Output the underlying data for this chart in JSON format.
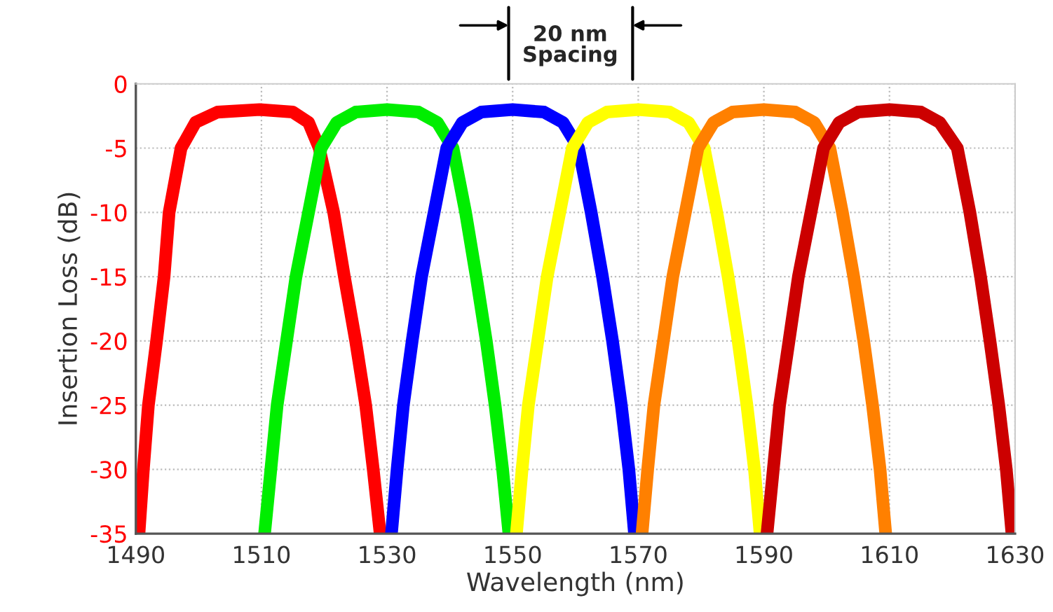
{
  "chart_data": {
    "type": "line",
    "xlabel": "Wavelength (nm)",
    "ylabel": "Insertion Loss (dB)",
    "xlim": [
      1490,
      1630
    ],
    "ylim": [
      -35,
      0
    ],
    "xticks": [
      1490,
      1510,
      1530,
      1550,
      1570,
      1590,
      1610,
      1630
    ],
    "yticks": [
      -35,
      -30,
      -25,
      -20,
      -15,
      -10,
      -5,
      0
    ],
    "grid": true,
    "marker": "none",
    "line_style": "solid",
    "annotations": [
      "20 nm\nSpacing"
    ],
    "series": [
      {
        "color": "#ff0000",
        "x": [
          1490.5,
          1491.2,
          1492,
          1493.3,
          1494.5,
          1495.3,
          1497.2,
          1499.5,
          1503,
          1509.7,
          1515,
          1517.5,
          1519.2,
          1521.5,
          1523.2,
          1525,
          1526.6,
          1527.8,
          1528.9
        ],
        "values": [
          -35,
          -30,
          -25,
          -20,
          -15,
          -10,
          -5,
          -3,
          -2.2,
          -2,
          -2.2,
          -3,
          -5,
          -10,
          -15,
          -20,
          -25,
          -30,
          -35
        ]
      },
      {
        "color": "#00ee00",
        "x": [
          1510.5,
          1511.5,
          1512.5,
          1514,
          1515.5,
          1517.5,
          1519.5,
          1522,
          1525,
          1530,
          1535,
          1538,
          1540.5,
          1542.5,
          1544.2,
          1545.8,
          1547.2,
          1548.4,
          1549.4
        ],
        "values": [
          -35,
          -30,
          -25,
          -20,
          -15,
          -10,
          -5,
          -3,
          -2.2,
          -2,
          -2.2,
          -3,
          -5,
          -10,
          -15,
          -20,
          -25,
          -30,
          -35
        ]
      },
      {
        "color": "#0000ff",
        "x": [
          1530.7,
          1531.6,
          1532.6,
          1534,
          1535.5,
          1537.5,
          1539.5,
          1542,
          1545,
          1550,
          1555,
          1558,
          1560.5,
          1562.5,
          1564.3,
          1565.9,
          1567.3,
          1568.5,
          1569.4
        ],
        "values": [
          -35,
          -30,
          -25,
          -20,
          -15,
          -10,
          -5,
          -3,
          -2.2,
          -2,
          -2.2,
          -3,
          -5,
          -10,
          -15,
          -20,
          -25,
          -30,
          -35
        ]
      },
      {
        "color": "#ffff00",
        "x": [
          1550.6,
          1551.5,
          1552.5,
          1554,
          1555.5,
          1557.5,
          1559.5,
          1562,
          1565,
          1570,
          1575,
          1578,
          1580.5,
          1582.5,
          1584.3,
          1585.9,
          1587.3,
          1588.5,
          1589.4
        ],
        "values": [
          -35,
          -30,
          -25,
          -20,
          -15,
          -10,
          -5,
          -3,
          -2.2,
          -2,
          -2.2,
          -3,
          -5,
          -10,
          -15,
          -20,
          -25,
          -30,
          -35
        ]
      },
      {
        "color": "#ff8000",
        "x": [
          1570.6,
          1571.5,
          1572.5,
          1574,
          1575.5,
          1577.5,
          1579.5,
          1582,
          1585,
          1590,
          1595,
          1598,
          1600.5,
          1602.5,
          1604.3,
          1605.9,
          1607.3,
          1608.5,
          1609.4
        ],
        "values": [
          -35,
          -30,
          -25,
          -20,
          -15,
          -10,
          -5,
          -3,
          -2.2,
          -2,
          -2.2,
          -3,
          -5,
          -10,
          -15,
          -20,
          -25,
          -30,
          -35
        ]
      },
      {
        "color": "#cc0000",
        "x": [
          1590.5,
          1591.5,
          1592.5,
          1594,
          1595.5,
          1597.5,
          1599.5,
          1602,
          1605,
          1610,
          1615,
          1618,
          1620.8,
          1622.8,
          1624.5,
          1626,
          1627.4,
          1628.6,
          1629.5
        ],
        "values": [
          -35,
          -30,
          -25,
          -20,
          -15,
          -10,
          -5,
          -3,
          -2.2,
          -2,
          -2.2,
          -3,
          -5,
          -10,
          -15,
          -20,
          -25,
          -30,
          -35
        ]
      }
    ]
  }
}
